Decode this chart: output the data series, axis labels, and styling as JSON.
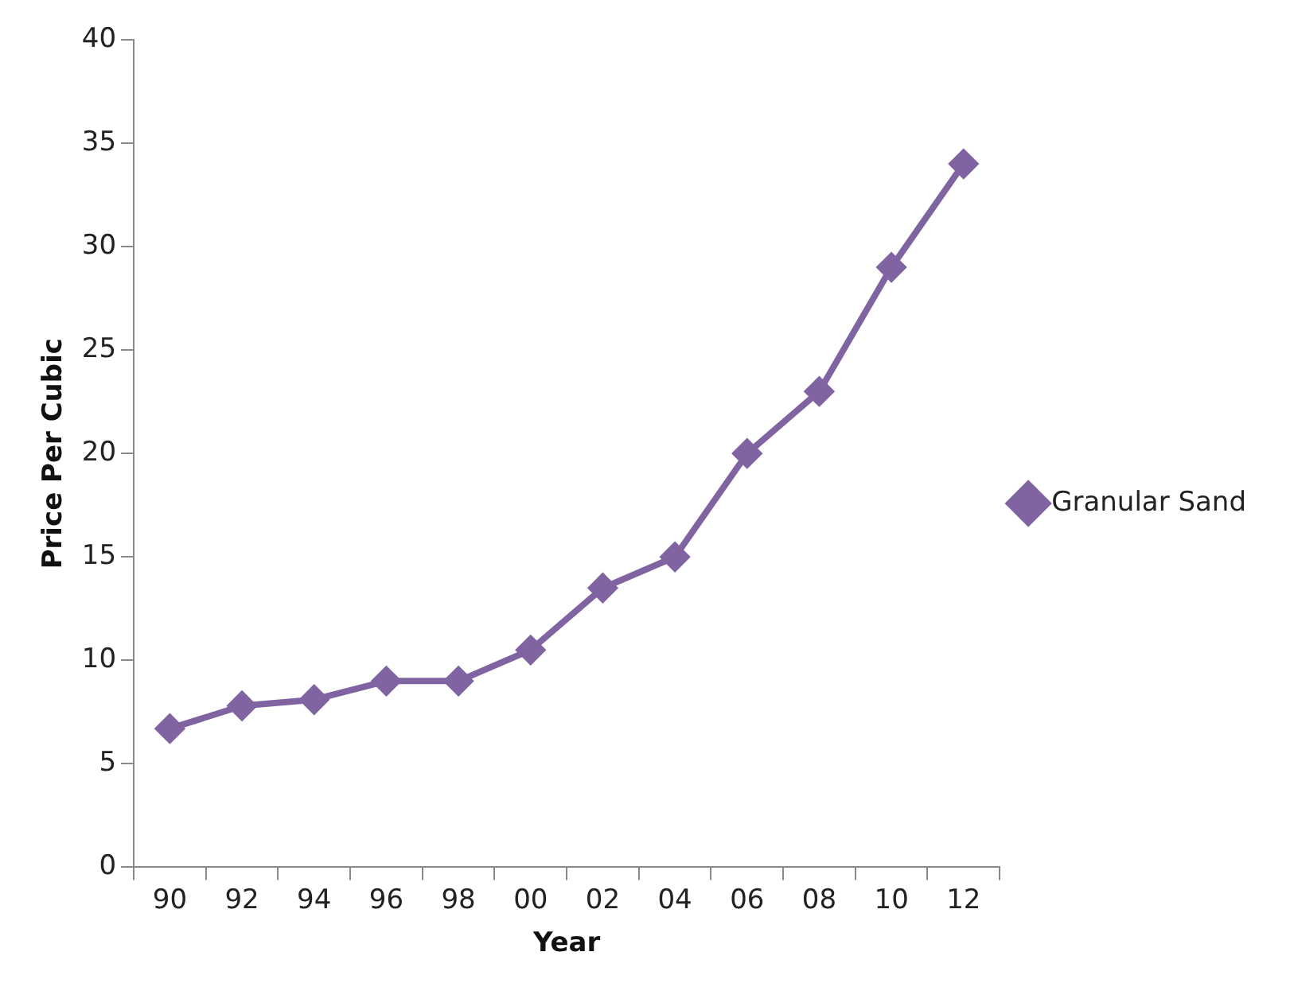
{
  "chart_data": {
    "type": "line",
    "xlabel": "Year",
    "ylabel": "Price Per Cubic",
    "categories": [
      "90",
      "92",
      "94",
      "96",
      "98",
      "00",
      "02",
      "04",
      "06",
      "08",
      "10",
      "12"
    ],
    "series": [
      {
        "name": "Granular Sand",
        "color": "#8064a2",
        "values": [
          6.7,
          7.8,
          8.1,
          9,
          9,
          10.5,
          13.5,
          15,
          20,
          23,
          29,
          34
        ]
      }
    ],
    "ylim": [
      0,
      40
    ],
    "yticks": [
      0,
      5,
      10,
      15,
      20,
      25,
      30,
      35,
      40
    ],
    "grid": false,
    "legend": "right",
    "marker": "diamond",
    "line_style": "solid"
  }
}
